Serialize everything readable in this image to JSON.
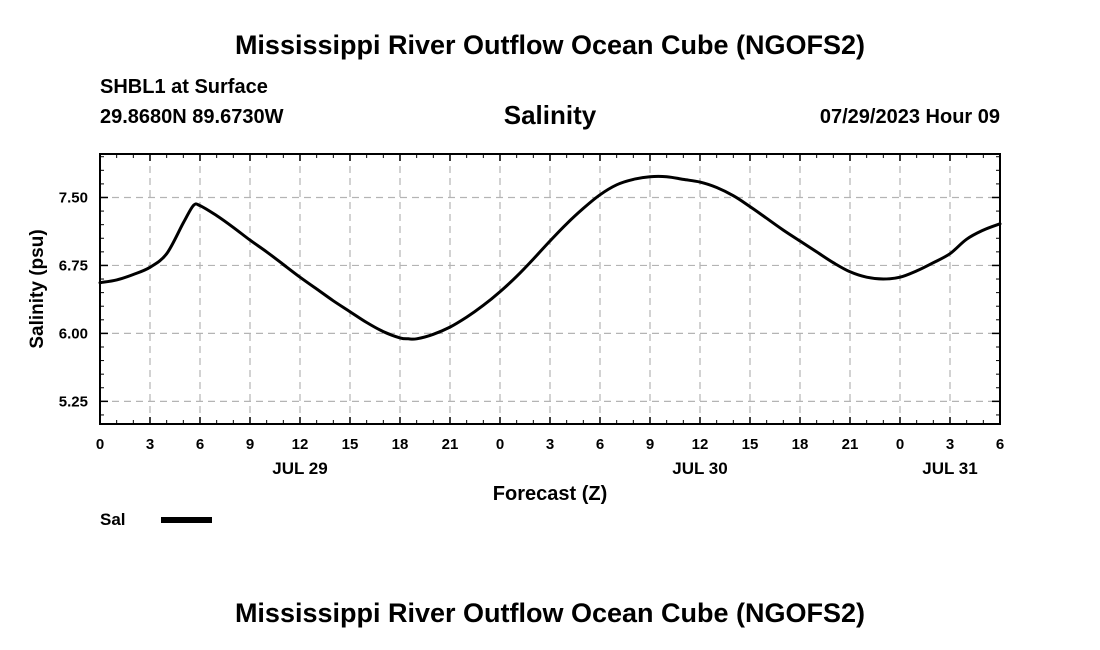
{
  "header": {
    "title": "Mississippi River Outflow Ocean Cube (NGOFS2)",
    "station": "SHBL1 at Surface",
    "coordinates": "29.8680N  89.6730W",
    "variable": "Salinity",
    "datetime": "07/29/2023 Hour 09"
  },
  "footer": {
    "title": "Mississippi River Outflow Ocean Cube (NGOFS2)"
  },
  "legend": {
    "label": "Sal",
    "color": "#000000"
  },
  "chart_data": {
    "type": "line",
    "title": "Salinity",
    "xlabel": "Forecast (Z)",
    "ylabel": "Salinity (psu)",
    "xlim": [
      0,
      54
    ],
    "ylim": [
      5.0,
      7.98
    ],
    "x_unit": "hours since 07/29/2023 00Z",
    "x_ticks": [
      0,
      3,
      6,
      9,
      12,
      15,
      18,
      21,
      24,
      27,
      30,
      33,
      36,
      39,
      42,
      45,
      48,
      51,
      54
    ],
    "x_tick_labels": [
      "0",
      "3",
      "6",
      "9",
      "12",
      "15",
      "18",
      "21",
      "0",
      "3",
      "6",
      "9",
      "12",
      "15",
      "18",
      "21",
      "0",
      "3",
      "6"
    ],
    "date_labels": [
      {
        "label": "JUL 29",
        "x": 12
      },
      {
        "label": "JUL 30",
        "x": 36
      },
      {
        "label": "JUL 31",
        "x": 51
      }
    ],
    "y_ticks": [
      5.25,
      6.0,
      6.75,
      7.5
    ],
    "y_tick_labels": [
      "5.25",
      "6.00",
      "6.75",
      "7.50"
    ],
    "grid": true,
    "series": [
      {
        "name": "Sal",
        "color": "#000000",
        "x": [
          0,
          1,
          2,
          3,
          4,
          5,
          5.6,
          6,
          7,
          8,
          9,
          10,
          11,
          12,
          13,
          14,
          15,
          16,
          17,
          18,
          18.5,
          19,
          20,
          21,
          22,
          23,
          24,
          25,
          26,
          27,
          28,
          29,
          30,
          31,
          32,
          33,
          34,
          35,
          36,
          37,
          38,
          39,
          40,
          41,
          42,
          43,
          44,
          45,
          46,
          47,
          48,
          49,
          50,
          51,
          52,
          53,
          54
        ],
        "values": [
          6.56,
          6.59,
          6.65,
          6.73,
          6.88,
          7.22,
          7.41,
          7.41,
          7.3,
          7.17,
          7.03,
          6.9,
          6.76,
          6.62,
          6.49,
          6.36,
          6.24,
          6.12,
          6.02,
          5.95,
          5.94,
          5.94,
          5.99,
          6.07,
          6.18,
          6.31,
          6.46,
          6.63,
          6.82,
          7.02,
          7.21,
          7.38,
          7.53,
          7.64,
          7.7,
          7.73,
          7.73,
          7.7,
          7.67,
          7.61,
          7.52,
          7.4,
          7.27,
          7.14,
          7.02,
          6.9,
          6.78,
          6.68,
          6.62,
          6.6,
          6.62,
          6.69,
          6.78,
          6.88,
          7.04,
          7.14,
          7.21
        ]
      }
    ]
  }
}
